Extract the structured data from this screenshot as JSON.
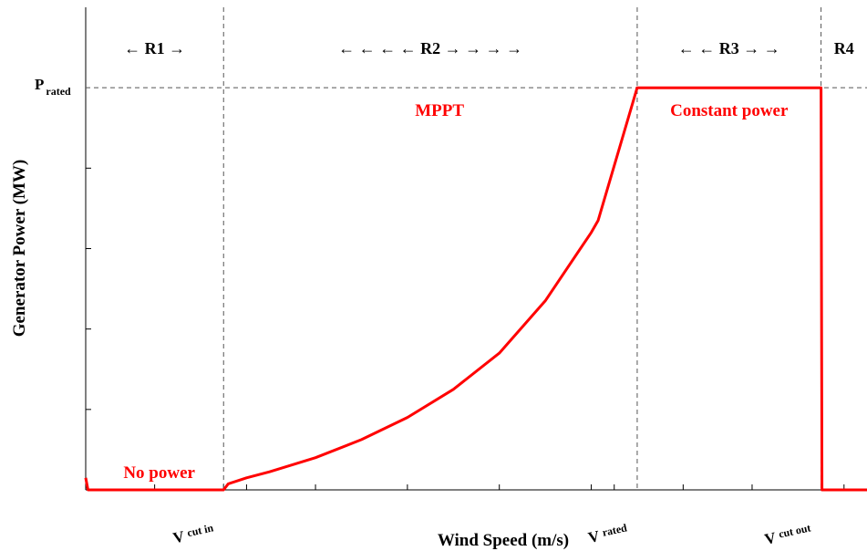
{
  "chart_data": {
    "type": "line",
    "title": "",
    "xlabel": "Wind Speed (m/s)",
    "ylabel": "Generator Power (MW)",
    "grid": false,
    "legend": "none",
    "colors": {
      "curve": "#ff0000",
      "text": "#000000",
      "annotation": "#ff0000"
    },
    "x_markers": [
      {
        "id": "cut_in",
        "main": "V",
        "sub": "cut in",
        "x": 3
      },
      {
        "id": "rated",
        "main": "V",
        "sub": "rated",
        "x": 12
      },
      {
        "id": "cut_out",
        "main": "V",
        "sub": "cut out",
        "x": 16
      }
    ],
    "y_markers": [
      {
        "id": "rated",
        "main": "P",
        "sub": "rated",
        "y": 1.0
      }
    ],
    "regions": [
      {
        "label": "←  R1  →",
        "x_from": 0,
        "x_to": 3
      },
      {
        "label": "← ← ← ←  R2  → → → →",
        "x_from": 3,
        "x_to": 12
      },
      {
        "label": "← ←  R3  → →",
        "x_from": 12,
        "x_to": 16
      },
      {
        "label": "R4",
        "x_from": 16,
        "x_to": 17
      }
    ],
    "annotations": [
      {
        "text": "No power",
        "x": 1.6,
        "y": 0.03
      },
      {
        "text": "MPPT",
        "x": 7.7,
        "y": 0.93
      },
      {
        "text": "Constant power",
        "x": 14.0,
        "y": 0.93
      }
    ],
    "series": [
      {
        "x": [
          0,
          0.05,
          3.0,
          3.1,
          3.5,
          4.0,
          5.0,
          6.0,
          7.0,
          8.0,
          9.0,
          10.0,
          11.0,
          11.15,
          12.0,
          16.0,
          16.02,
          17.0
        ],
        "y": [
          0.03,
          0.0,
          0.0,
          0.015,
          0.03,
          0.045,
          0.08,
          0.125,
          0.18,
          0.25,
          0.34,
          0.47,
          0.64,
          0.67,
          1.0,
          1.0,
          0.0,
          0.0
        ]
      }
    ],
    "xlim": [
      0,
      17
    ],
    "ylim": [
      0,
      1.2
    ],
    "x_ticks": [
      1.5,
      3.0,
      3.5,
      5.0,
      7.0,
      9.0,
      11.0,
      11.5,
      13.0,
      14.5,
      16.5
    ],
    "y_ticks": [
      0.2,
      0.4,
      0.6,
      0.8
    ]
  }
}
